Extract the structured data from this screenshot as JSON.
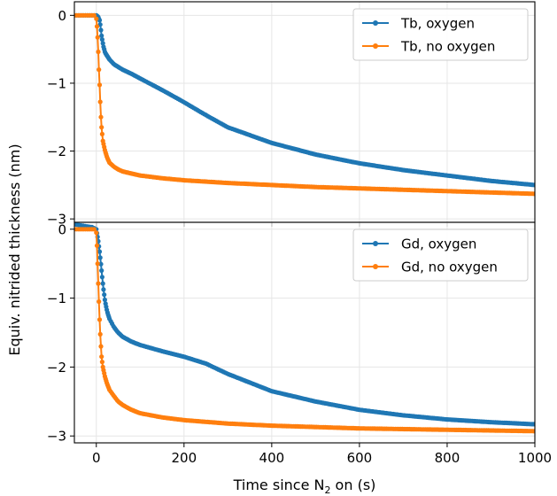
{
  "figure": {
    "ylabel": "Equiv. nitrided thickness (nm)",
    "xlabel_prefix": "Time since N",
    "xlabel_sub": "2",
    "xlabel_suffix": " on (s)"
  },
  "chart_data": [
    {
      "type": "line",
      "panel": "top",
      "xlim": [
        -50,
        1000
      ],
      "ylim": [
        -3.05,
        0.2
      ],
      "x_ticks": [
        0,
        200,
        400,
        600,
        800,
        1000
      ],
      "y_ticks": [
        0,
        -1,
        -2,
        -3
      ],
      "y_tick_labels": [
        "0",
        "−1",
        "−2",
        "−3"
      ],
      "grid": true,
      "legend_position": "top-right",
      "series": [
        {
          "name": "Tb, oxygen",
          "color": "#1f77b4",
          "x": [
            -50,
            -20,
            0,
            4,
            8,
            12,
            16,
            20,
            30,
            40,
            60,
            80,
            100,
            150,
            200,
            250,
            300,
            400,
            500,
            600,
            700,
            800,
            900,
            1000
          ],
          "y": [
            0,
            0,
            0,
            -0.02,
            -0.08,
            -0.3,
            -0.45,
            -0.55,
            -0.65,
            -0.72,
            -0.8,
            -0.86,
            -0.93,
            -1.1,
            -1.28,
            -1.47,
            -1.65,
            -1.88,
            -2.05,
            -2.18,
            -2.28,
            -2.36,
            -2.44,
            -2.5
          ]
        },
        {
          "name": "Tb, no oxygen",
          "color": "#ff7f0e",
          "x": [
            -50,
            -20,
            -5,
            0,
            2,
            4,
            6,
            8,
            10,
            12,
            15,
            20,
            25,
            30,
            40,
            50,
            60,
            80,
            100,
            150,
            200,
            300,
            400,
            500,
            600,
            700,
            800,
            900,
            1000
          ],
          "y": [
            0,
            0,
            0,
            -0.05,
            -0.2,
            -0.45,
            -0.8,
            -1.1,
            -1.45,
            -1.65,
            -1.85,
            -2.0,
            -2.1,
            -2.17,
            -2.23,
            -2.27,
            -2.3,
            -2.33,
            -2.36,
            -2.4,
            -2.43,
            -2.47,
            -2.5,
            -2.53,
            -2.55,
            -2.57,
            -2.59,
            -2.61,
            -2.63
          ]
        }
      ]
    },
    {
      "type": "line",
      "panel": "bottom",
      "xlim": [
        -50,
        1000
      ],
      "ylim": [
        -3.1,
        0.1
      ],
      "x_ticks": [
        0,
        200,
        400,
        600,
        800,
        1000
      ],
      "x_tick_labels": [
        "0",
        "200",
        "400",
        "600",
        "800",
        "1000"
      ],
      "y_ticks": [
        0,
        -1,
        -2,
        -3
      ],
      "y_tick_labels": [
        "0",
        "−1",
        "−2",
        "−3"
      ],
      "grid": true,
      "legend_position": "top-right",
      "series": [
        {
          "name": "Gd, oxygen",
          "color": "#1f77b4",
          "x": [
            -50,
            -30,
            -10,
            0,
            4,
            8,
            12,
            16,
            20,
            25,
            30,
            40,
            50,
            60,
            80,
            100,
            150,
            200,
            250,
            300,
            400,
            500,
            600,
            700,
            800,
            900,
            1000
          ],
          "y": [
            0.07,
            0.05,
            0.03,
            0.0,
            -0.15,
            -0.35,
            -0.6,
            -0.85,
            -1.05,
            -1.2,
            -1.3,
            -1.42,
            -1.5,
            -1.56,
            -1.63,
            -1.68,
            -1.77,
            -1.85,
            -1.95,
            -2.1,
            -2.35,
            -2.5,
            -2.62,
            -2.7,
            -2.76,
            -2.8,
            -2.83
          ]
        },
        {
          "name": "Gd, no oxygen",
          "color": "#ff7f0e",
          "x": [
            -50,
            -20,
            -5,
            0,
            2,
            4,
            6,
            8,
            10,
            12,
            15,
            20,
            25,
            30,
            40,
            50,
            60,
            80,
            100,
            150,
            200,
            300,
            400,
            500,
            600,
            700,
            800,
            900,
            1000
          ],
          "y": [
            0,
            0,
            0,
            -0.05,
            -0.3,
            -0.7,
            -1.05,
            -1.4,
            -1.65,
            -1.85,
            -2.0,
            -2.15,
            -2.25,
            -2.33,
            -2.42,
            -2.5,
            -2.55,
            -2.62,
            -2.67,
            -2.73,
            -2.77,
            -2.82,
            -2.85,
            -2.87,
            -2.89,
            -2.9,
            -2.91,
            -2.92,
            -2.93
          ]
        }
      ]
    }
  ]
}
